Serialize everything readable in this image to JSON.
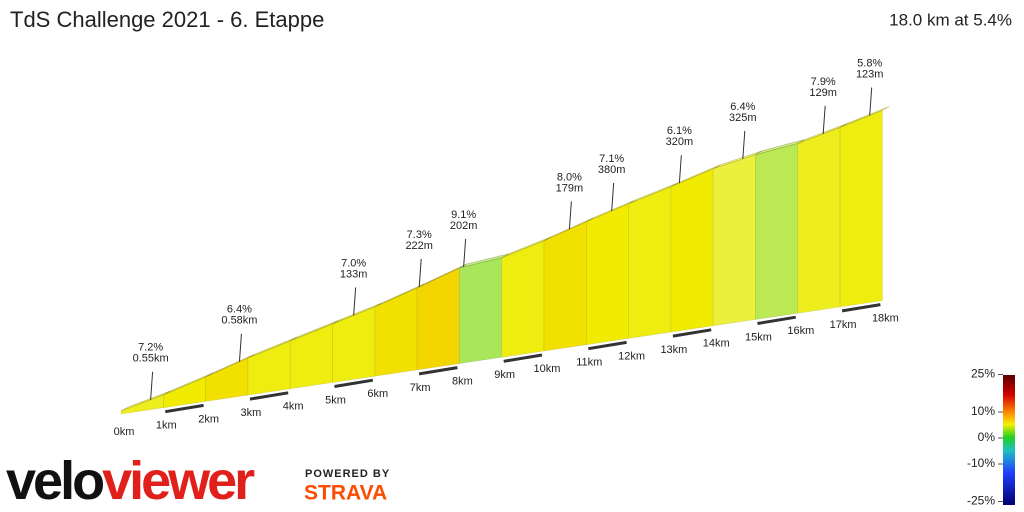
{
  "chart_data": {
    "type": "elevation-profile",
    "title": "TdS Challenge 2021 - 6. Etappe",
    "summary": "18.0 km at 5.4%",
    "values": [
      5,
      6,
      6.5,
      5.5,
      5.5,
      5.5,
      6.5,
      7,
      2,
      5.5,
      6.5,
      6,
      5.5,
      6,
      4,
      2.5,
      5,
      5.5
    ],
    "xlim": [
      0,
      18
    ],
    "xticks": [
      {
        "value": 0,
        "label": "0km"
      },
      {
        "value": 1,
        "label": "1km"
      },
      {
        "value": 2,
        "label": "2km"
      },
      {
        "value": 3,
        "label": "3km"
      },
      {
        "value": 4,
        "label": "4km"
      },
      {
        "value": 5,
        "label": "5km"
      },
      {
        "value": 6,
        "label": "6km"
      },
      {
        "value": 7,
        "label": "7km"
      },
      {
        "value": 8,
        "label": "8km"
      },
      {
        "value": 9,
        "label": "9km"
      },
      {
        "value": 10,
        "label": "10km"
      },
      {
        "value": 11,
        "label": "11km"
      },
      {
        "value": 12,
        "label": "12km"
      },
      {
        "value": 13,
        "label": "13km"
      },
      {
        "value": 14,
        "label": "14km"
      },
      {
        "value": 15,
        "label": "15km"
      },
      {
        "value": 16,
        "label": "16km"
      },
      {
        "value": 17,
        "label": "17km"
      },
      {
        "value": 18,
        "label": "18km"
      }
    ],
    "annotations": [
      {
        "x": 0.7,
        "grade": "7.2%",
        "length": "0.55km"
      },
      {
        "x": 2.8,
        "grade": "6.4%",
        "length": "0.58km"
      },
      {
        "x": 5.5,
        "grade": "7.0%",
        "length": "133m"
      },
      {
        "x": 7.05,
        "grade": "7.3%",
        "length": "222m"
      },
      {
        "x": 8.1,
        "grade": "9.1%",
        "length": "202m"
      },
      {
        "x": 10.6,
        "grade": "8.0%",
        "length": "179m"
      },
      {
        "x": 11.6,
        "grade": "7.1%",
        "length": "380m"
      },
      {
        "x": 13.2,
        "grade": "6.1%",
        "length": "320m"
      },
      {
        "x": 14.7,
        "grade": "6.4%",
        "length": "325m"
      },
      {
        "x": 16.6,
        "grade": "7.9%",
        "length": "129m"
      },
      {
        "x": 17.7,
        "grade": "5.8%",
        "length": "123m"
      }
    ],
    "colorbar": {
      "ticks": [
        {
          "value": 25,
          "label": "25%"
        },
        {
          "value": 10,
          "label": "10%"
        },
        {
          "value": 0,
          "label": "0%"
        },
        {
          "value": -10,
          "label": "-10%"
        },
        {
          "value": -25,
          "label": "-25%"
        }
      ]
    },
    "logo": {
      "brand_a": "velo",
      "brand_b": "viewer",
      "powered": "POWERED BY",
      "strava": "STRAVA"
    }
  }
}
